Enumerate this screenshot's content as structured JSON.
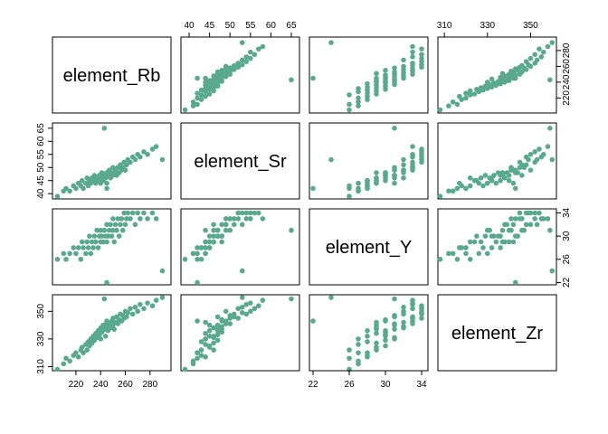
{
  "chart_data": {
    "type": "pairs",
    "color": "#5aa98f",
    "variables": [
      {
        "name": "element_Rb",
        "lim": [
          201,
          297
        ],
        "ticks": [
          220,
          240,
          260,
          280
        ],
        "values": [
          205,
          210,
          212,
          215,
          218,
          220,
          222,
          224,
          225,
          226,
          228,
          229,
          230,
          231,
          232,
          233,
          234,
          235,
          236,
          237,
          238,
          239,
          240,
          240,
          241,
          242,
          243,
          244,
          245,
          245,
          246,
          247,
          248,
          249,
          250,
          250,
          251,
          252,
          253,
          254,
          255,
          256,
          257,
          258,
          259,
          260,
          261,
          262,
          264,
          266,
          268,
          270,
          272,
          275,
          278,
          282,
          285,
          290,
          245,
          243
        ]
      },
      {
        "name": "element_Sr",
        "lim": [
          38,
          67
        ],
        "ticks": [
          40,
          45,
          50,
          55,
          60,
          65
        ],
        "values": [
          39,
          41,
          42,
          41,
          43,
          42,
          44,
          43,
          45,
          42,
          44,
          46,
          43,
          45,
          44,
          46,
          45,
          47,
          44,
          46,
          45,
          47,
          46,
          44,
          48,
          45,
          47,
          46,
          48,
          44,
          47,
          49,
          46,
          48,
          47,
          50,
          48,
          49,
          47,
          50,
          48,
          51,
          49,
          50,
          52,
          49,
          51,
          53,
          52,
          54,
          53,
          55,
          54,
          56,
          55,
          57,
          58,
          53,
          42,
          65
        ]
      },
      {
        "name": "element_Y",
        "lim": [
          21.6,
          34.7
        ],
        "ticks": [
          22,
          26,
          30,
          34
        ],
        "values": [
          26,
          27,
          26,
          27,
          28,
          27,
          28,
          26,
          29,
          28,
          27,
          29,
          28,
          30,
          27,
          29,
          28,
          30,
          29,
          31,
          28,
          30,
          29,
          31,
          30,
          29,
          31,
          30,
          32,
          29,
          30,
          31,
          32,
          30,
          31,
          33,
          29,
          32,
          31,
          33,
          30,
          32,
          33,
          31,
          34,
          32,
          33,
          34,
          33,
          34,
          32,
          34,
          33,
          34,
          33,
          34,
          33,
          24,
          22,
          31
        ]
      },
      {
        "name": "element_Zr",
        "lim": [
          307,
          362
        ],
        "ticks": [
          310,
          330,
          350
        ],
        "values": [
          308,
          312,
          316,
          314,
          318,
          320,
          317,
          322,
          324,
          320,
          326,
          322,
          328,
          325,
          330,
          327,
          332,
          329,
          334,
          331,
          336,
          333,
          338,
          330,
          335,
          340,
          337,
          332,
          339,
          342,
          336,
          341,
          338,
          343,
          340,
          345,
          337,
          342,
          346,
          341,
          344,
          348,
          343,
          347,
          345,
          350,
          346,
          349,
          352,
          348,
          353,
          350,
          355,
          352,
          356,
          354,
          358,
          360,
          343,
          359
        ]
      }
    ]
  }
}
